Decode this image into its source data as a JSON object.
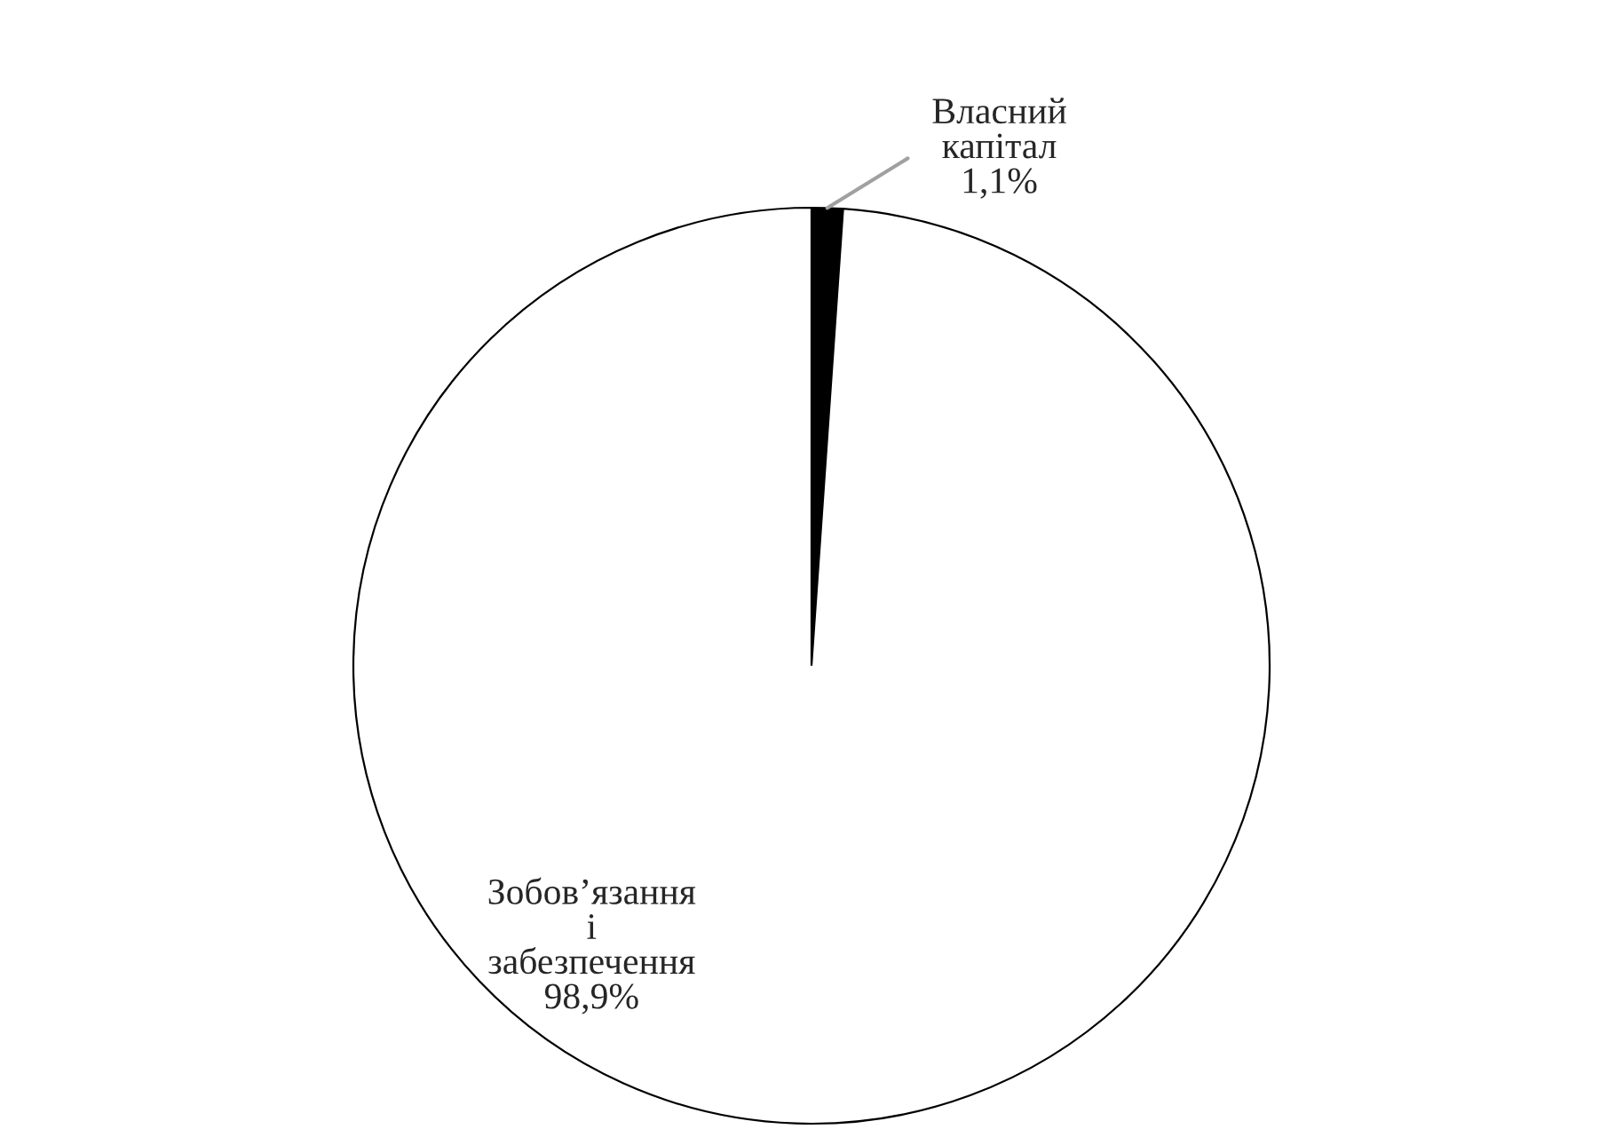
{
  "chart_data": {
    "type": "pie",
    "categories": [
      "Власний капітал",
      "Зобов’язання і забезпечення"
    ],
    "values": [
      1.1,
      98.9
    ],
    "value_labels": [
      "1,1%",
      "98,9%"
    ],
    "colors": [
      "#000000",
      "#ffffff"
    ]
  }
}
